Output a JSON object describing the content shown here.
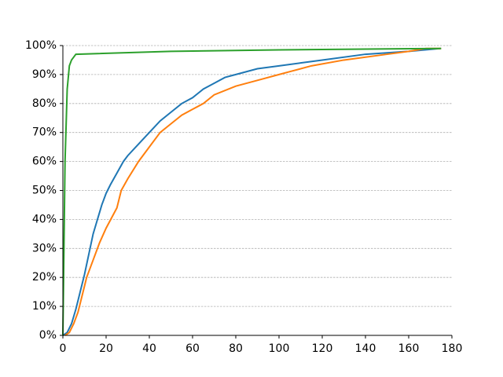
{
  "chart_data": {
    "type": "line",
    "xlim": [
      0,
      180
    ],
    "xticks": [
      0,
      20,
      40,
      60,
      80,
      100,
      120,
      140,
      160,
      180
    ],
    "ylim": [
      0,
      100
    ],
    "yticks": [
      {
        "value": 0,
        "label": "0%"
      },
      {
        "value": 10,
        "label": "10%"
      },
      {
        "value": 20,
        "label": "20%"
      },
      {
        "value": 30,
        "label": "30%"
      },
      {
        "value": 40,
        "label": "40%"
      },
      {
        "value": 50,
        "label": "50%"
      },
      {
        "value": 60,
        "label": "60%"
      },
      {
        "value": 70,
        "label": "70%"
      },
      {
        "value": 80,
        "label": "80%"
      },
      {
        "value": 90,
        "label": "90%"
      },
      {
        "value": 100,
        "label": "100%"
      }
    ],
    "grid": true,
    "series": [
      {
        "color": "#1f77b4",
        "x": [
          0,
          2,
          4,
          6,
          8,
          10,
          12,
          14,
          16,
          18,
          20,
          22,
          25,
          28,
          30,
          35,
          40,
          45,
          50,
          55,
          60,
          65,
          70,
          75,
          80,
          90,
          100,
          110,
          120,
          140,
          160,
          175
        ],
        "values": [
          0,
          1,
          4,
          9,
          15,
          21,
          28,
          35,
          40,
          45,
          49,
          52,
          56,
          60,
          62,
          66,
          70,
          74,
          77,
          80,
          82,
          85,
          87,
          89,
          90,
          92,
          93,
          94,
          95,
          97,
          98,
          99
        ]
      },
      {
        "color": "#ff7f0e",
        "x": [
          1,
          3,
          5,
          7,
          9,
          11,
          14,
          17,
          20,
          25,
          27,
          30,
          35,
          40,
          45,
          50,
          55,
          60,
          65,
          70,
          80,
          90,
          100,
          105,
          115,
          130,
          150,
          160,
          168,
          175
        ],
        "values": [
          0,
          1,
          4,
          8,
          14,
          20,
          26,
          32,
          37,
          44,
          50,
          54,
          60,
          65,
          70,
          73,
          76,
          78,
          80,
          83,
          86,
          88,
          90,
          91,
          93,
          95,
          97,
          98,
          99,
          99
        ]
      },
      {
        "color": "#2ca02c",
        "x": [
          0,
          1,
          2,
          3,
          4,
          6,
          50,
          100,
          175
        ],
        "values": [
          0,
          60,
          85,
          93,
          95,
          97,
          98,
          98.5,
          99
        ]
      }
    ]
  }
}
